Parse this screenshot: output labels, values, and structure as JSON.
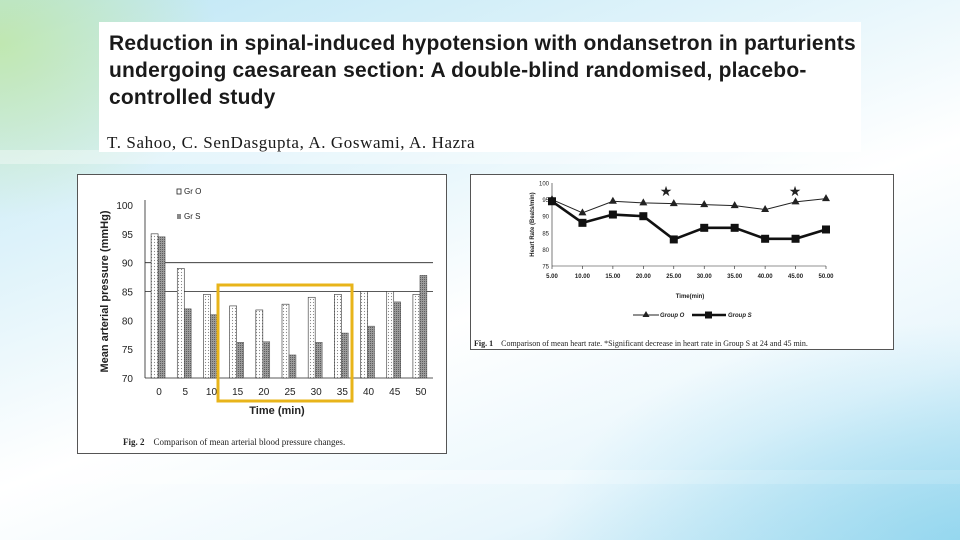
{
  "slide": {
    "title": "Reduction in spinal-induced hypotension with ondansetron in parturients undergoing caesarean section: A double-blind randomised, placebo-controlled study",
    "authors": "T. Sahoo, C. SenDasgupta, A. Goswami, A. Hazra",
    "highlight_color": "#e8b41a"
  },
  "fig2": {
    "caption_label": "Fig. 2",
    "caption_text": "Comparison of mean arterial blood pressure changes."
  },
  "fig1": {
    "caption_label": "Fig. 1",
    "caption_text": "Comparison of mean heart rate. *Significant decrease in heart rate in Group S at 24 and 45 min."
  },
  "chart_data": [
    {
      "type": "bar",
      "ylabel": "Mean arterial pressure (mmHg)",
      "xlabel": "Time (min)",
      "ylim": [
        70,
        100
      ],
      "yticks": [
        "70",
        "75",
        "80",
        "85",
        "90",
        "95",
        "100"
      ],
      "categories": [
        "0",
        "5",
        "10",
        "15",
        "20",
        "25",
        "30",
        "35",
        "40",
        "45",
        "50"
      ],
      "legend_position": "top-right",
      "series": [
        {
          "name": "Gr O",
          "values": [
            95,
            89,
            84.5,
            82.5,
            81.8,
            82.8,
            84,
            84.5,
            85,
            85,
            84.5
          ]
        },
        {
          "name": "Gr S",
          "values": [
            94.5,
            82,
            81,
            76.2,
            76.3,
            74,
            76.2,
            77.8,
            79,
            83.2,
            87.8
          ]
        }
      ],
      "gridlines": [
        85,
        90
      ]
    },
    {
      "type": "line",
      "ylabel": "Heart Rate (Beats/min)",
      "xlabel": "Time(min)",
      "ylim": [
        75,
        100
      ],
      "yticks": [
        "75",
        "80",
        "85",
        "90",
        "95",
        "100"
      ],
      "categories": [
        "5.00",
        "10.00",
        "15.00",
        "20.00",
        "25.00",
        "30.00",
        "35.00",
        "40.00",
        "45.00",
        "50.00"
      ],
      "legend_position": "bottom",
      "series": [
        {
          "name": "Group O",
          "values": [
            95,
            91,
            94.5,
            94,
            93.8,
            93.5,
            93.2,
            92,
            94.3,
            95.3
          ]
        },
        {
          "name": "Group S",
          "values": [
            94.5,
            88,
            90.5,
            90,
            83,
            86.5,
            86.5,
            83.2,
            83.2,
            86
          ]
        }
      ],
      "annotations": [
        {
          "text": "★",
          "x": "22.00"
        },
        {
          "text": "★",
          "x": "45.00"
        }
      ]
    }
  ]
}
